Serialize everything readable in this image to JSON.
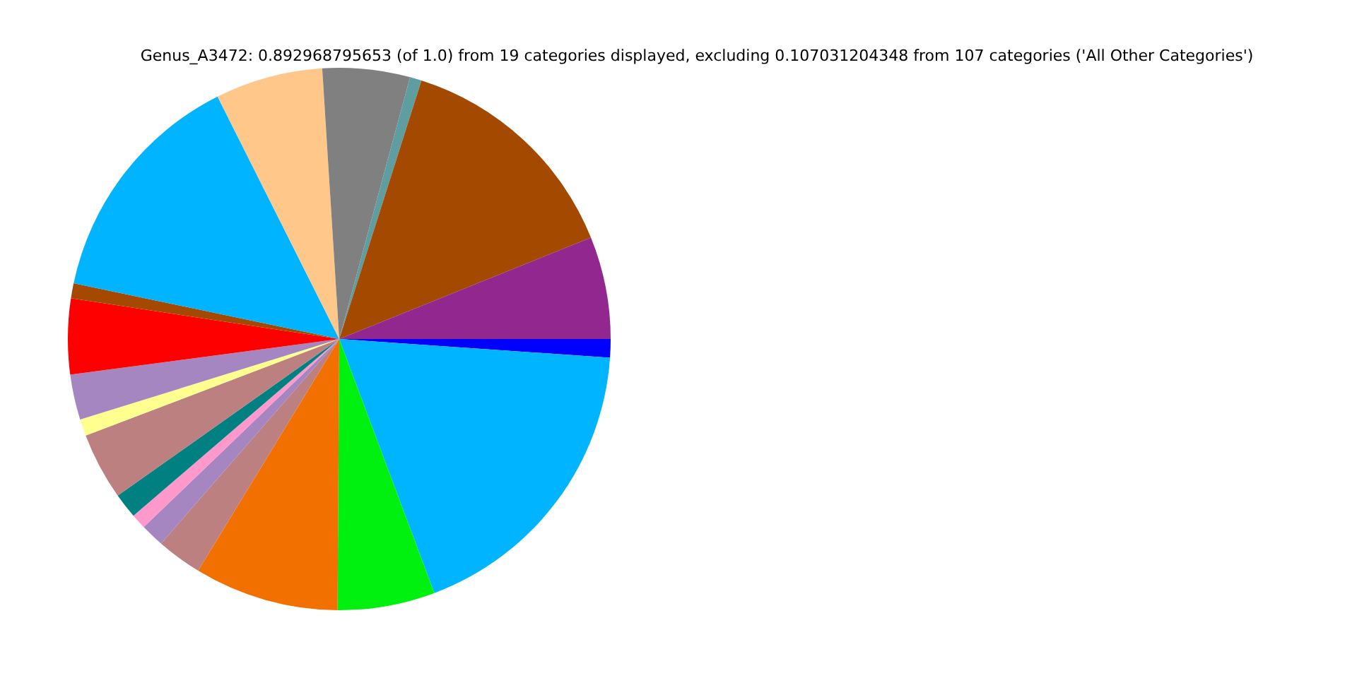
{
  "chart_data": {
    "type": "pie",
    "title": "Genus_A3472: 0.892968795653 (of 1.0) from 19 categories displayed, excluding 0.107031204348 from 107 categories ('All Other Categories')",
    "categories": [
      null,
      null,
      null,
      null,
      null,
      null,
      null,
      null,
      null,
      null,
      null,
      null,
      null,
      null,
      null,
      null,
      null,
      null,
      null
    ],
    "values": [
      1.1,
      18.2,
      5.8,
      8.6,
      2.7,
      1.4,
      0.9,
      1.5,
      4.0,
      1.0,
      2.7,
      4.5,
      0.9,
      14.3,
      6.4,
      5.2,
      0.7,
      14.0,
      6.1
    ],
    "colors": [
      "#0000ff",
      "#00b4ff",
      "#00f010",
      "#f27000",
      "#bc8080",
      "#a686c0",
      "#ff99cc",
      "#008080",
      "#bc8080",
      "#ffff90",
      "#a686c0",
      "#ff0000",
      "#a34a00",
      "#00b4ff",
      "#ffc88a",
      "#808080",
      "#5f9ea0",
      "#a34a00",
      "#92278f"
    ]
  }
}
